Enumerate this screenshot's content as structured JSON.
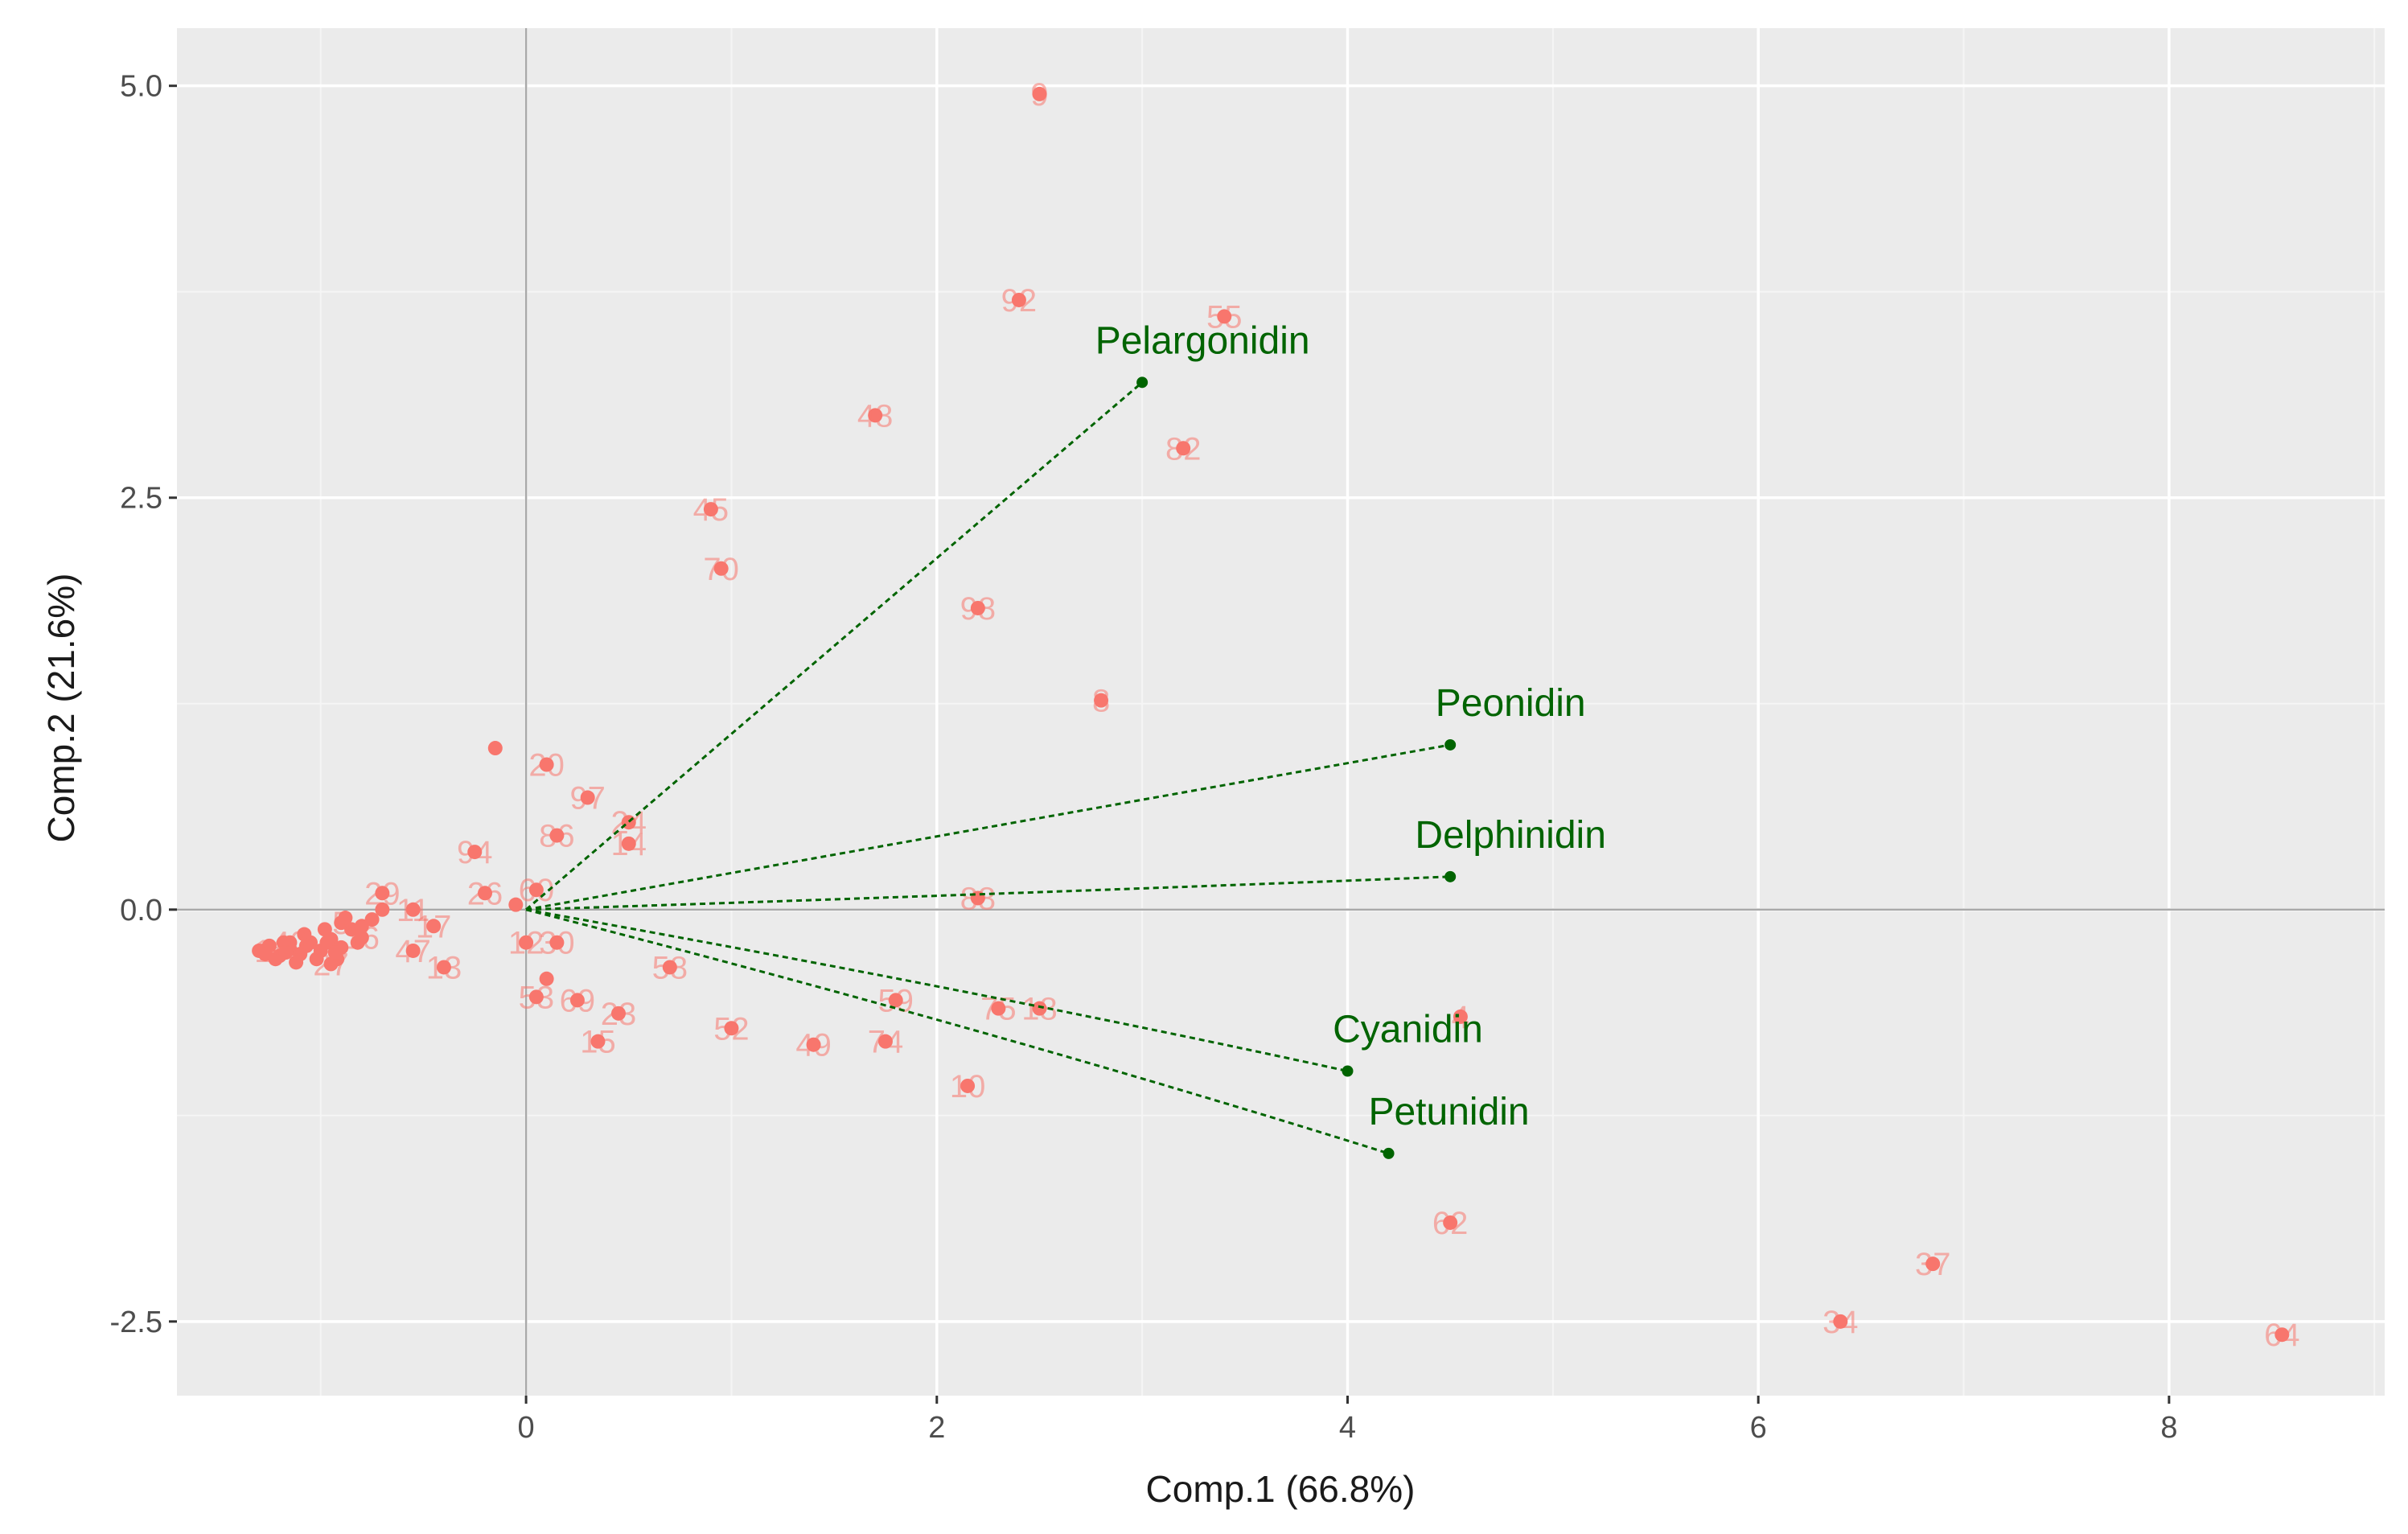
{
  "chart_data": {
    "type": "biplot",
    "xlabel": "Comp.1 (66.8%)",
    "ylabel": "Comp.2 (21.6%)",
    "xlim": [
      -1.7,
      9.05
    ],
    "ylim": [
      -2.95,
      5.35
    ],
    "x_major_ticks": [
      0,
      2,
      4,
      6,
      8
    ],
    "x_minor_ticks": [
      -1,
      1,
      3,
      5,
      7,
      9
    ],
    "y_major_ticks": [
      -2.5,
      0.0,
      2.5,
      5.0
    ],
    "y_minor_ticks": [
      -1.25,
      1.25,
      3.75
    ],
    "x_tick_labels": [
      "0",
      "2",
      "4",
      "6",
      "8"
    ],
    "y_tick_labels": [
      "-2.5",
      "0.0",
      "2.5",
      "5.0"
    ],
    "grid": true,
    "reference_lines": [
      {
        "axis": "x",
        "value": 0
      },
      {
        "axis": "y",
        "value": 0
      }
    ],
    "point_color": "#f8766d",
    "vector_color": "#006400",
    "loadings": [
      {
        "name": "Pelargonidin",
        "x": 3.0,
        "y": 3.2
      },
      {
        "name": "Peonidin",
        "x": 4.5,
        "y": 1.0
      },
      {
        "name": "Delphinidin",
        "x": 4.5,
        "y": 0.2
      },
      {
        "name": "Cyanidin",
        "x": 4.0,
        "y": -0.98
      },
      {
        "name": "Petunidin",
        "x": 4.2,
        "y": -1.48
      }
    ],
    "labeled_points": [
      {
        "label": "9",
        "x": 2.5,
        "y": 4.95
      },
      {
        "label": "92",
        "x": 2.4,
        "y": 3.7
      },
      {
        "label": "55",
        "x": 3.4,
        "y": 3.6
      },
      {
        "label": "48",
        "x": 1.7,
        "y": 3.0
      },
      {
        "label": "82",
        "x": 3.2,
        "y": 2.8
      },
      {
        "label": "45",
        "x": 0.9,
        "y": 2.43
      },
      {
        "label": "70",
        "x": 0.95,
        "y": 2.07
      },
      {
        "label": "98",
        "x": 2.2,
        "y": 1.83
      },
      {
        "label": "8",
        "x": 2.8,
        "y": 1.27
      },
      {
        "label": "20",
        "x": 0.1,
        "y": 0.88
      },
      {
        "label": "97",
        "x": 0.3,
        "y": 0.68
      },
      {
        "label": "24",
        "x": 0.5,
        "y": 0.53
      },
      {
        "label": "86",
        "x": 0.15,
        "y": 0.45
      },
      {
        "label": "14",
        "x": 0.5,
        "y": 0.4
      },
      {
        "label": "94",
        "x": -0.25,
        "y": 0.35
      },
      {
        "label": "26",
        "x": -0.2,
        "y": 0.1
      },
      {
        "label": "60",
        "x": 0.05,
        "y": 0.12
      },
      {
        "label": "88",
        "x": 2.2,
        "y": 0.07
      },
      {
        "label": "29",
        "x": -0.7,
        "y": 0.1
      },
      {
        "label": "11",
        "x": -0.55,
        "y": 0.0
      },
      {
        "label": "17",
        "x": -0.45,
        "y": -0.1
      },
      {
        "label": "12",
        "x": 0.0,
        "y": -0.2
      },
      {
        "label": "30",
        "x": 0.15,
        "y": -0.2
      },
      {
        "label": "47",
        "x": -0.55,
        "y": -0.25
      },
      {
        "label": "13",
        "x": -0.4,
        "y": -0.35
      },
      {
        "label": "58",
        "x": 0.7,
        "y": -0.35
      },
      {
        "label": "53",
        "x": 0.05,
        "y": -0.53
      },
      {
        "label": "69",
        "x": 0.25,
        "y": -0.55
      },
      {
        "label": "23",
        "x": 0.45,
        "y": -0.63
      },
      {
        "label": "15",
        "x": 0.35,
        "y": -0.8
      },
      {
        "label": "52",
        "x": 1.0,
        "y": -0.72
      },
      {
        "label": "49",
        "x": 1.4,
        "y": -0.82
      },
      {
        "label": "74",
        "x": 1.75,
        "y": -0.8
      },
      {
        "label": "59",
        "x": 1.8,
        "y": -0.55
      },
      {
        "label": "75",
        "x": 2.3,
        "y": -0.6
      },
      {
        "label": "18",
        "x": 2.5,
        "y": -0.6
      },
      {
        "label": "4",
        "x": 4.55,
        "y": -0.65
      },
      {
        "label": "10",
        "x": 2.15,
        "y": -1.07
      },
      {
        "label": "62",
        "x": 4.5,
        "y": -1.9
      },
      {
        "label": "37",
        "x": 6.85,
        "y": -2.15
      },
      {
        "label": "34",
        "x": 6.4,
        "y": -2.5
      },
      {
        "label": "64",
        "x": 8.55,
        "y": -2.58
      },
      {
        "label": "27",
        "x": -0.95,
        "y": -0.33
      },
      {
        "label": "16",
        "x": -0.8,
        "y": -0.17
      },
      {
        "label": "40",
        "x": -1.15,
        "y": -0.2
      },
      {
        "label": "1",
        "x": -1.28,
        "y": -0.25
      },
      {
        "label": "5",
        "x": -0.9,
        "y": -0.08
      }
    ],
    "unlabeled_points": [
      {
        "x": -0.15,
        "y": 0.98
      },
      {
        "x": -0.05,
        "y": 0.03
      },
      {
        "x": 0.1,
        "y": -0.42
      },
      {
        "x": -1.3,
        "y": -0.25
      },
      {
        "x": -1.25,
        "y": -0.22
      },
      {
        "x": -1.2,
        "y": -0.28
      },
      {
        "x": -1.15,
        "y": -0.24
      },
      {
        "x": -1.1,
        "y": -0.27
      },
      {
        "x": -1.05,
        "y": -0.2
      },
      {
        "x": -1.0,
        "y": -0.25
      },
      {
        "x": -0.95,
        "y": -0.18
      },
      {
        "x": -0.9,
        "y": -0.23
      },
      {
        "x": -0.85,
        "y": -0.12
      },
      {
        "x": -0.8,
        "y": -0.1
      },
      {
        "x": -0.75,
        "y": -0.06
      },
      {
        "x": -1.22,
        "y": -0.3
      },
      {
        "x": -1.12,
        "y": -0.32
      },
      {
        "x": -1.02,
        "y": -0.3
      },
      {
        "x": -0.92,
        "y": -0.3
      },
      {
        "x": -1.18,
        "y": -0.2
      },
      {
        "x": -1.08,
        "y": -0.15
      },
      {
        "x": -0.98,
        "y": -0.12
      },
      {
        "x": -0.88,
        "y": -0.05
      },
      {
        "x": -0.7,
        "y": 0.0
      },
      {
        "x": -1.27,
        "y": -0.27
      },
      {
        "x": -1.17,
        "y": -0.26
      },
      {
        "x": -1.07,
        "y": -0.22
      },
      {
        "x": -0.97,
        "y": -0.2
      },
      {
        "x": -0.82,
        "y": -0.2
      },
      {
        "x": -0.93,
        "y": -0.26
      }
    ]
  }
}
